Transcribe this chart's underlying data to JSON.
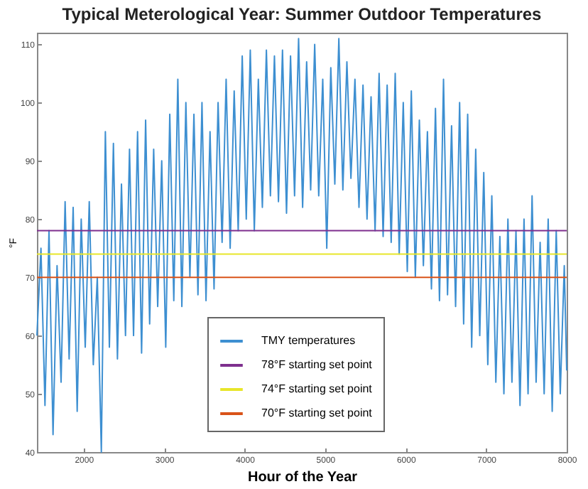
{
  "chart_data": {
    "type": "line",
    "title": "Typical Meterological Year: Summer Outdoor Temperatures",
    "xlabel": "Hour of the Year",
    "ylabel": "°F",
    "xlim": [
      1420,
      8000
    ],
    "xticks": [
      2000,
      3000,
      4000,
      5000,
      6000,
      7000,
      8000
    ],
    "ylim": [
      40,
      112
    ],
    "yticks": [
      40,
      50,
      60,
      70,
      80,
      90,
      100,
      110
    ],
    "legend": "bottom",
    "marker": "none",
    "line_style": "solid",
    "series": [
      {
        "name": "TMY temperatures",
        "color": "#3d8fd1",
        "x": [
          1420,
          1470,
          1520,
          1570,
          1620,
          1670,
          1720,
          1770,
          1820,
          1870,
          1920,
          1970,
          2020,
          2070,
          2120,
          2170,
          2220,
          2270,
          2320,
          2370,
          2420,
          2470,
          2520,
          2570,
          2620,
          2670,
          2720,
          2770,
          2820,
          2870,
          2920,
          2970,
          3020,
          3070,
          3120,
          3170,
          3220,
          3270,
          3320,
          3370,
          3420,
          3470,
          3520,
          3570,
          3620,
          3670,
          3720,
          3770,
          3820,
          3870,
          3920,
          3970,
          4020,
          4070,
          4120,
          4170,
          4220,
          4270,
          4320,
          4370,
          4420,
          4470,
          4520,
          4570,
          4620,
          4670,
          4720,
          4770,
          4820,
          4870,
          4920,
          4970,
          5020,
          5070,
          5120,
          5170,
          5220,
          5270,
          5320,
          5370,
          5420,
          5470,
          5520,
          5570,
          5620,
          5670,
          5720,
          5770,
          5820,
          5870,
          5920,
          5970,
          6020,
          6070,
          6120,
          6170,
          6220,
          6270,
          6320,
          6370,
          6420,
          6470,
          6520,
          6570,
          6620,
          6670,
          6720,
          6770,
          6820,
          6870,
          6920,
          6970,
          7020,
          7070,
          7120,
          7170,
          7220,
          7270,
          7320,
          7370,
          7420,
          7470,
          7520,
          7570,
          7620,
          7670,
          7720,
          7770,
          7820,
          7870,
          7920,
          7970,
          8000
        ],
        "values": [
          60,
          75,
          48,
          78,
          43,
          72,
          52,
          83,
          56,
          82,
          47,
          80,
          58,
          83,
          55,
          70,
          40,
          95,
          58,
          93,
          56,
          86,
          60,
          92,
          60,
          95,
          57,
          97,
          62,
          92,
          65,
          90,
          58,
          98,
          66,
          104,
          65,
          100,
          70,
          98,
          67,
          100,
          66,
          95,
          68,
          100,
          76,
          104,
          75,
          102,
          78,
          108,
          80,
          109,
          78,
          104,
          82,
          109,
          84,
          108,
          83,
          109,
          81,
          108,
          84,
          111,
          82,
          107,
          85,
          110,
          84,
          104,
          75,
          106,
          86,
          111,
          85,
          107,
          87,
          104,
          82,
          103,
          80,
          101,
          78,
          105,
          77,
          103,
          76,
          105,
          74,
          100,
          71,
          102,
          70,
          97,
          72,
          95,
          68,
          99,
          66,
          104,
          67,
          96,
          65,
          100,
          62,
          98,
          58,
          92,
          60,
          88,
          55,
          84,
          52,
          77,
          50,
          80,
          52,
          78,
          48,
          80,
          50,
          84,
          52,
          76,
          50,
          80,
          47,
          78,
          50,
          72,
          54
        ]
      },
      {
        "name": "78°F starting set point",
        "color": "#7e2f8e",
        "x": [
          1420,
          8000
        ],
        "values": [
          78,
          78
        ]
      },
      {
        "name": "74°F starting set point",
        "color": "#e8e62a",
        "x": [
          1420,
          8000
        ],
        "values": [
          74,
          74
        ]
      },
      {
        "name": "70°F starting set point",
        "color": "#d95319",
        "x": [
          1420,
          8000
        ],
        "values": [
          70,
          70
        ]
      }
    ]
  }
}
